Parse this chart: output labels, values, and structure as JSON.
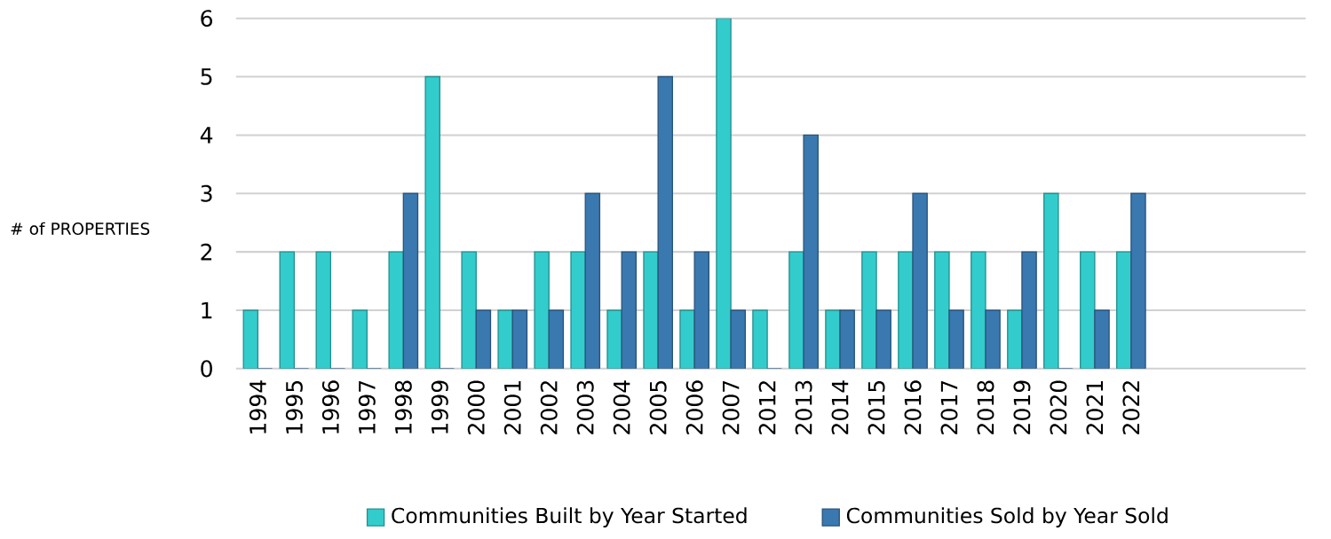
{
  "chart_data": {
    "type": "bar",
    "ylabel": "# of PROPERTIES",
    "categories": [
      "1994",
      "1995",
      "1996",
      "1997",
      "1998",
      "1999",
      "2000",
      "2001",
      "2002",
      "2003",
      "2004",
      "2005",
      "2006",
      "2007",
      "2012",
      "2013",
      "2014",
      "2015",
      "2016",
      "2017",
      "2018",
      "2019",
      "2020",
      "2021",
      "2022"
    ],
    "series": [
      {
        "name": "Communities Built by Year Started",
        "color": "#33cccc",
        "values": [
          1,
          2,
          2,
          1,
          2,
          5,
          2,
          1,
          2,
          2,
          1,
          2,
          1,
          6,
          1,
          2,
          1,
          2,
          2,
          2,
          2,
          1,
          3,
          2,
          2
        ]
      },
      {
        "name": "Communities Sold by Year Sold",
        "color": "#3a78b0",
        "values": [
          0,
          0,
          0,
          0,
          3,
          0,
          1,
          1,
          1,
          3,
          2,
          5,
          2,
          1,
          0,
          4,
          1,
          1,
          3,
          1,
          1,
          2,
          0,
          1,
          3
        ]
      }
    ],
    "ylim": [
      0,
      6
    ],
    "yticks": [
      0,
      1,
      2,
      3,
      4,
      5,
      6
    ],
    "grid": "y",
    "legend": "bottom"
  }
}
